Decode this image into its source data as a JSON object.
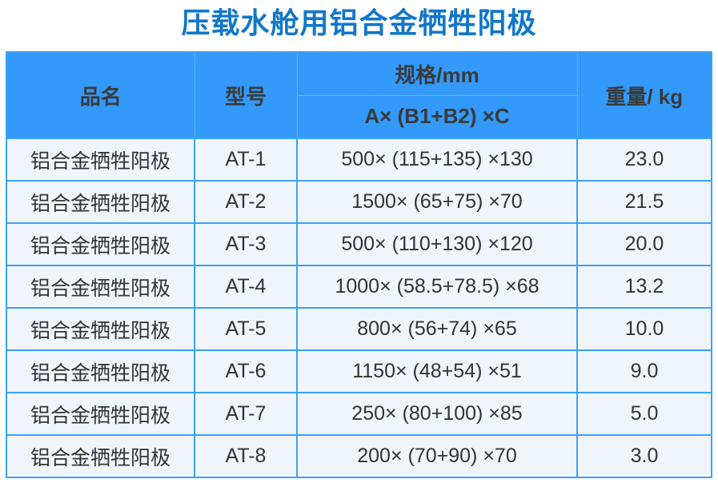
{
  "page": {
    "title": "压载水舱用铝合金牺牲阳极"
  },
  "colors": {
    "title_blue": "#1177C9",
    "header_bg": "#3399FA",
    "header_divider": "#5EB1F9",
    "grid_border_blue": "#3BA2F6",
    "row_bg": "#F0F5FC",
    "header_text": "#3A3A3A",
    "cell_text": "#333333"
  },
  "table": {
    "headers": {
      "name": "品名",
      "model": "型号",
      "spec_group": "规格/mm",
      "spec_formula": "A× (B1+B2) ×C",
      "weight": "重量/ kg"
    },
    "rows": [
      {
        "name": "铝合金牺牲阳极",
        "model": "AT-1",
        "spec": "500× (115+135) ×130",
        "weight": "23.0"
      },
      {
        "name": "铝合金牺牲阳极",
        "model": "AT-2",
        "spec": "1500× (65+75) ×70",
        "weight": "21.5"
      },
      {
        "name": "铝合金牺牲阳极",
        "model": "AT-3",
        "spec": "500× (110+130) ×120",
        "weight": "20.0"
      },
      {
        "name": "铝合金牺牲阳极",
        "model": "AT-4",
        "spec": "1000× (58.5+78.5) ×68",
        "weight": "13.2"
      },
      {
        "name": "铝合金牺牲阳极",
        "model": "AT-5",
        "spec": "800× (56+74) ×65",
        "weight": "10.0"
      },
      {
        "name": "铝合金牺牲阳极",
        "model": "AT-6",
        "spec": "1150× (48+54) ×51",
        "weight": "9.0"
      },
      {
        "name": "铝合金牺牲阳极",
        "model": "AT-7",
        "spec": "250× (80+100) ×85",
        "weight": "5.0"
      },
      {
        "name": "铝合金牺牲阳极",
        "model": "AT-8",
        "spec": "200× (70+90) ×70",
        "weight": "3.0"
      }
    ]
  }
}
